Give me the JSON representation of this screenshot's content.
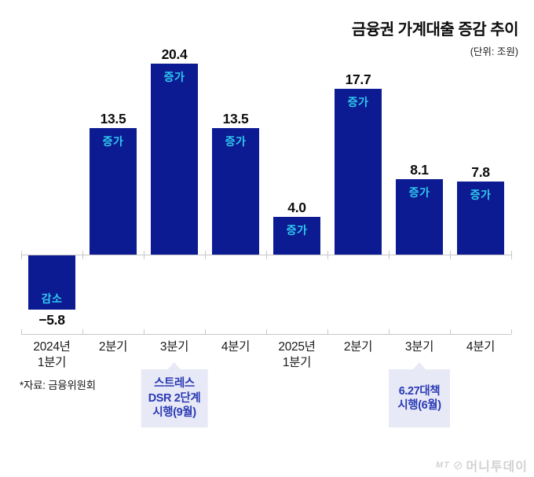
{
  "header": {
    "title": "금융권 가계대출 증감 추이",
    "unit_note": "(단위: 조원)"
  },
  "footer": {
    "source_note": "*자료: 금융위원회",
    "watermark": {
      "abbr": "MT",
      "name": "머니투데이"
    }
  },
  "colors": {
    "bar": "#0c1b92",
    "direction_label": "#2ec9ef",
    "value_label": "#0d0d0d",
    "axis": "#c8c8c8",
    "x_label": "#191919",
    "annotation_bg": "#e8e9f7",
    "annotation_text": "#2a3ab4",
    "watermark": "#d2d2d2"
  },
  "chart_data": {
    "type": "bar",
    "title": "금융권 가계대출 증감 추이",
    "unit": "조원",
    "categories": [
      [
        "2024년",
        "1분기"
      ],
      [
        "2분기"
      ],
      [
        "3분기"
      ],
      [
        "4분기"
      ],
      [
        "2025년",
        "1분기"
      ],
      [
        "2분기"
      ],
      [
        "3분기"
      ],
      [
        "4분기"
      ]
    ],
    "values": [
      -5.8,
      13.5,
      20.4,
      13.5,
      4.0,
      17.7,
      8.1,
      7.8
    ],
    "value_labels": [
      "−5.8",
      "13.5",
      "20.4",
      "13.5",
      "4.0",
      "17.7",
      "8.1",
      "7.8"
    ],
    "direction_labels": [
      "감소",
      "증가",
      "증가",
      "증가",
      "증가",
      "증가",
      "증가",
      "증가"
    ],
    "ylim": [
      -8,
      23
    ],
    "grid": false,
    "legend": false,
    "annotations": [
      {
        "category_index": 2,
        "lines": [
          "스트레스",
          "DSR 2단계",
          "시행(9월)"
        ]
      },
      {
        "category_index": 6,
        "lines": [
          "6.27대책",
          "시행(6월)"
        ]
      }
    ]
  }
}
